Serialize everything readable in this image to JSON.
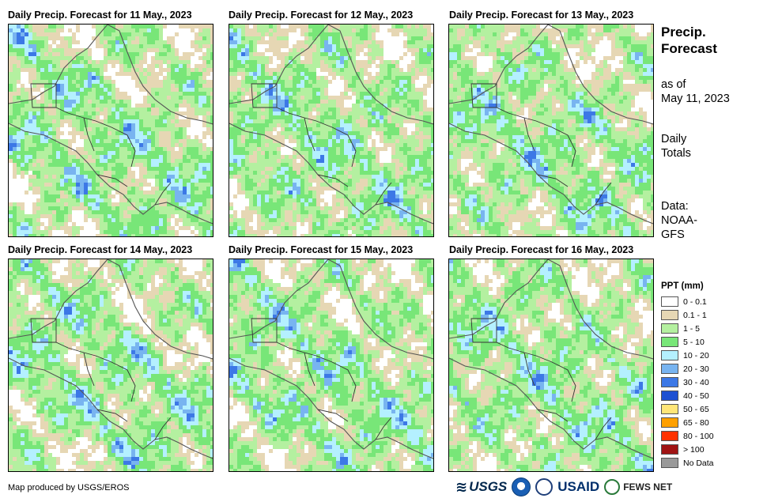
{
  "panels": [
    {
      "title": "Daily Precip. Forecast for 11 May., 2023",
      "date": "11 May., 2023"
    },
    {
      "title": "Daily Precip. Forecast for 12 May., 2023",
      "date": "12 May., 2023"
    },
    {
      "title": "Daily Precip. Forecast for 13 May., 2023",
      "date": "13 May., 2023"
    },
    {
      "title": "Daily Precip. Forecast for 14 May., 2023",
      "date": "14 May., 2023"
    },
    {
      "title": "Daily Precip. Forecast for 15 May., 2023",
      "date": "15 May., 2023"
    },
    {
      "title": "Daily Precip. Forecast for 16 May., 2023",
      "date": "16 May., 2023"
    }
  ],
  "sidebar": {
    "title_line1": "Precip.",
    "title_line2": "Forecast",
    "asof_line1": "as of",
    "asof_line2": "May 11, 2023",
    "totals_line1": "Daily",
    "totals_line2": "Totals",
    "data_line1": "Data:",
    "data_line2": "NOAA-",
    "data_line3": "GFS"
  },
  "legend": {
    "title": "PPT (mm)",
    "items": [
      {
        "label": "0 - 0.1",
        "color": "#ffffff"
      },
      {
        "label": "0.1 - 1",
        "color": "#e6d7b4"
      },
      {
        "label": "1 - 5",
        "color": "#b4f0a0"
      },
      {
        "label": "5 - 10",
        "color": "#78e678"
      },
      {
        "label": "10 - 20",
        "color": "#b4f0ff"
      },
      {
        "label": "20 - 30",
        "color": "#78b4f0"
      },
      {
        "label": "30 - 40",
        "color": "#3c78e6"
      },
      {
        "label": "40 - 50",
        "color": "#1e50d2"
      },
      {
        "label": "50 - 65",
        "color": "#ffe678"
      },
      {
        "label": "65 - 80",
        "color": "#ffa000"
      },
      {
        "label": "80 - 100",
        "color": "#ff3200"
      },
      {
        "label": "> 100",
        "color": "#a01414"
      },
      {
        "label": "No Data",
        "color": "#999999"
      }
    ]
  },
  "footer": {
    "credit": "Map produced by USGS/EROS",
    "logo_usgs": "USGS",
    "logo_usaid": "USAID",
    "logo_fews": "FEWS NET"
  }
}
